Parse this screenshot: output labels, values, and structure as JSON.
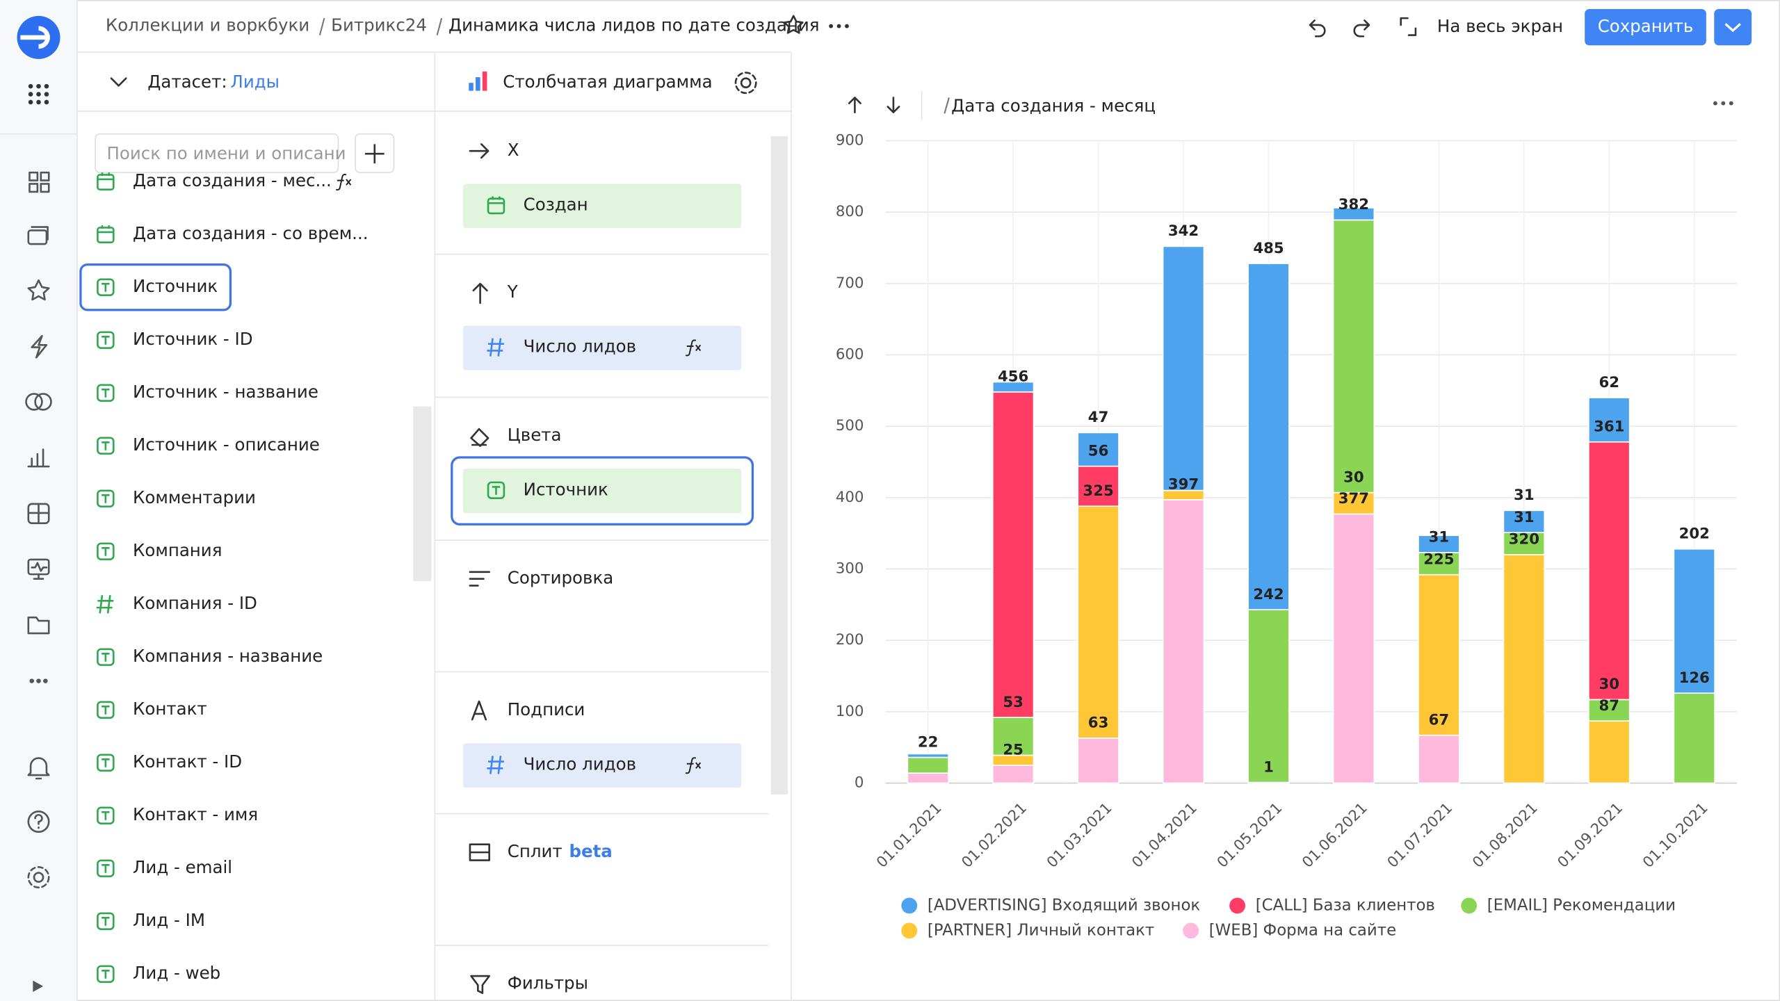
{
  "header": {
    "breadcrumb": [
      "Коллекции и воркбуки",
      "Битрикс24",
      "Динамика числа лидов по дате создания"
    ],
    "fullscreen": "На весь экран",
    "save": "Сохранить"
  },
  "dataset": {
    "label": "Датасет:",
    "name": "Лиды",
    "search_placeholder": "Поиск по имени и описани",
    "fields": [
      {
        "kind": "date",
        "name": "Дата создания - мес...",
        "formula": true
      },
      {
        "kind": "date",
        "name": "Дата создания - со врем..."
      },
      {
        "kind": "text",
        "name": "Источник",
        "selected": true
      },
      {
        "kind": "text",
        "name": "Источник - ID"
      },
      {
        "kind": "text",
        "name": "Источник - название"
      },
      {
        "kind": "text",
        "name": "Источник - описание"
      },
      {
        "kind": "text",
        "name": "Комментарии"
      },
      {
        "kind": "text",
        "name": "Компания"
      },
      {
        "kind": "number",
        "name": "Компания - ID"
      },
      {
        "kind": "text",
        "name": "Компания - название"
      },
      {
        "kind": "text",
        "name": "Контакт"
      },
      {
        "kind": "text",
        "name": "Контакт - ID"
      },
      {
        "kind": "text",
        "name": "Контакт - имя"
      },
      {
        "kind": "text",
        "name": "Лид - email"
      },
      {
        "kind": "text",
        "name": "Лид - IM"
      },
      {
        "kind": "text",
        "name": "Лид - web"
      }
    ]
  },
  "wizard": {
    "chart_type": "Столбчатая диаграмма",
    "sections": [
      {
        "title": "X",
        "item": {
          "kind": "date",
          "name": "Создан"
        }
      },
      {
        "title": "Y",
        "item": {
          "kind": "number",
          "name": "Число лидов",
          "formula": true
        }
      },
      {
        "title": "Цвета",
        "item": {
          "kind": "text",
          "name": "Источник",
          "selected": true
        }
      },
      {
        "title": "Сортировка"
      },
      {
        "title": "Подписи",
        "item": {
          "kind": "number",
          "name": "Число лидов",
          "formula": true
        }
      },
      {
        "title": "Сплит",
        "badge": "beta"
      },
      {
        "title": "Фильтры"
      }
    ]
  },
  "chart_header": "Дата создания - месяц",
  "chart_data": {
    "type": "bar",
    "stacked": true,
    "grid": true,
    "categories": [
      "01.01.2021",
      "01.02.2021",
      "01.03.2021",
      "01.04.2021",
      "01.05.2021",
      "01.06.2021",
      "01.07.2021",
      "01.08.2021",
      "01.09.2021",
      "01.10.2021"
    ],
    "ylim": [
      0,
      900
    ],
    "yticks": [
      0,
      100,
      200,
      300,
      400,
      500,
      600,
      700,
      800,
      900
    ],
    "series": [
      {
        "name": "[ADVERTISING] Входящий звонок",
        "color": "#4da3ee",
        "values": [
          5,
          14,
          47,
          342,
          485,
          17,
          24,
          31,
          62,
          202
        ],
        "value_labels": [
          null,
          null,
          "47",
          "342",
          "485",
          null,
          null,
          "31",
          "62",
          "202"
        ]
      },
      {
        "name": "[CALL] База клиентов",
        "color": "#ff3d64",
        "values": [
          null,
          456,
          56,
          null,
          null,
          null,
          null,
          null,
          361,
          null
        ],
        "value_labels": [
          null,
          "456",
          "56",
          null,
          null,
          null,
          null,
          null,
          "361",
          null
        ]
      },
      {
        "name": "[EMAIL] Рекомендации",
        "color": "#8ad554",
        "values": [
          22,
          53,
          null,
          null,
          242,
          382,
          31,
          31,
          30,
          126
        ],
        "value_labels": [
          "22",
          "53",
          null,
          null,
          "242",
          "382",
          "31",
          "31",
          "30",
          "126"
        ]
      },
      {
        "name": "[PARTNER] Личный контакт",
        "color": "#ffc636",
        "values": [
          null,
          14,
          325,
          13,
          null,
          30,
          225,
          320,
          87,
          null
        ],
        "value_labels": [
          null,
          null,
          "325",
          null,
          null,
          "30",
          "225",
          "320",
          "87",
          null
        ]
      },
      {
        "name": "[WEB] Форма на сайте",
        "color": "#ffb9dd",
        "values": [
          14,
          25,
          63,
          397,
          1,
          377,
          67,
          null,
          null,
          null
        ],
        "value_labels": [
          null,
          "25",
          "63",
          "397",
          "1",
          "377",
          "67",
          null,
          null,
          null
        ]
      }
    ]
  }
}
